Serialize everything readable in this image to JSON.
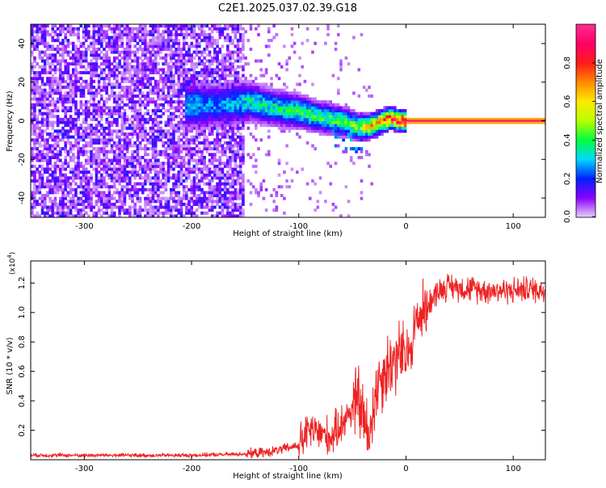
{
  "title": "C2E1.2025.037.02.39.G18",
  "colorbar": {
    "label": "Normalized spectral amplitude",
    "ticks": [
      {
        "value": 0.0,
        "label": "0.0"
      },
      {
        "value": 0.2,
        "label": "0.2"
      },
      {
        "value": 0.4,
        "label": "0.4"
      },
      {
        "value": 0.6,
        "label": "0.6"
      },
      {
        "value": 0.8,
        "label": "0.8"
      }
    ],
    "colors": [
      "#e6d3f7",
      "#8c00ff",
      "#0022ff",
      "#00d8ff",
      "#00ff3c",
      "#b8ff00",
      "#ffe800",
      "#ff8800",
      "#ff1a1a",
      "#ff0066",
      "#ff2f8f"
    ]
  },
  "chart_data": [
    {
      "type": "heatmap",
      "xlabel": "Height of straight line (km)",
      "ylabel": "Frequency (Hz)",
      "xlim": [
        -350,
        130
      ],
      "ylim": [
        -50,
        50
      ],
      "x_ticks": [
        {
          "value": -300,
          "label": "-300"
        },
        {
          "value": -200,
          "label": "-200"
        },
        {
          "value": -100,
          "label": "-100"
        },
        {
          "value": 0,
          "label": "0"
        },
        {
          "value": 100,
          "label": "100"
        }
      ],
      "y_ticks": [
        {
          "value": -40,
          "label": "-40"
        },
        {
          "value": -20,
          "label": "-20"
        },
        {
          "value": 0,
          "label": "0"
        },
        {
          "value": 20,
          "label": "20"
        },
        {
          "value": 40,
          "label": "40"
        }
      ],
      "colorscale_range": [
        0,
        1
      ],
      "noise_region_x": [
        -350,
        -150
      ],
      "signal_ridge": [
        {
          "x": -195,
          "y": 8,
          "amplitude": 0.3
        },
        {
          "x": -175,
          "y": 8,
          "amplitude": 0.25
        },
        {
          "x": -145,
          "y": 10,
          "amplitude": 0.35
        },
        {
          "x": -125,
          "y": 7,
          "amplitude": 0.35
        },
        {
          "x": -100,
          "y": 5,
          "amplitude": 0.4
        },
        {
          "x": -80,
          "y": 2,
          "amplitude": 0.4
        },
        {
          "x": -60,
          "y": 0,
          "amplitude": 0.45
        },
        {
          "x": -45,
          "y": -3,
          "amplitude": 0.5
        },
        {
          "x": -35,
          "y": -3,
          "amplitude": 0.6
        },
        {
          "x": -25,
          "y": -1,
          "amplitude": 0.7
        },
        {
          "x": -15,
          "y": 1.5,
          "amplitude": 0.8
        },
        {
          "x": -5,
          "y": 0,
          "amplitude": 0.85
        },
        {
          "x": 0,
          "y": 0,
          "amplitude": 0.95
        },
        {
          "x": 130,
          "y": 0,
          "amplitude": 0.95
        }
      ]
    },
    {
      "type": "line",
      "xlabel": "Height of straight line (km)",
      "ylabel": "SNR (10 * v/v)",
      "y_multiplier": "(x10",
      "y_multiplier_exp": "4",
      "y_multiplier_close": ")",
      "xlim": [
        -350,
        130
      ],
      "ylim": [
        0,
        1.35
      ],
      "x_ticks": [
        {
          "value": -300,
          "label": "-300"
        },
        {
          "value": -200,
          "label": "-200"
        },
        {
          "value": -100,
          "label": "-100"
        },
        {
          "value": 0,
          "label": "0"
        },
        {
          "value": 100,
          "label": "100"
        }
      ],
      "y_ticks": [
        {
          "value": 0.2,
          "label": "0.2"
        },
        {
          "value": 0.4,
          "label": "0.4"
        },
        {
          "value": 0.6,
          "label": "0.6"
        },
        {
          "value": 0.8,
          "label": "0.8"
        },
        {
          "value": 1.0,
          "label": "1.0"
        },
        {
          "value": 1.2,
          "label": "1.2"
        }
      ],
      "color": "#ee2222",
      "x": [
        -350,
        -300,
        -250,
        -200,
        -170,
        -150,
        -130,
        -115,
        -100,
        -90,
        -80,
        -70,
        -60,
        -50,
        -45,
        -40,
        -35,
        -30,
        -25,
        -20,
        -15,
        -10,
        -5,
        0,
        5,
        10,
        15,
        20,
        25,
        30,
        40,
        50,
        60,
        80,
        100,
        115,
        130
      ],
      "y": [
        0.03,
        0.03,
        0.03,
        0.03,
        0.035,
        0.04,
        0.05,
        0.07,
        0.1,
        0.2,
        0.18,
        0.15,
        0.25,
        0.35,
        0.42,
        0.3,
        0.12,
        0.4,
        0.55,
        0.6,
        0.65,
        0.68,
        0.72,
        0.68,
        0.8,
        0.95,
        1.0,
        1.05,
        1.1,
        1.15,
        1.18,
        1.17,
        1.16,
        1.15,
        1.15,
        1.16,
        1.15
      ]
    }
  ]
}
